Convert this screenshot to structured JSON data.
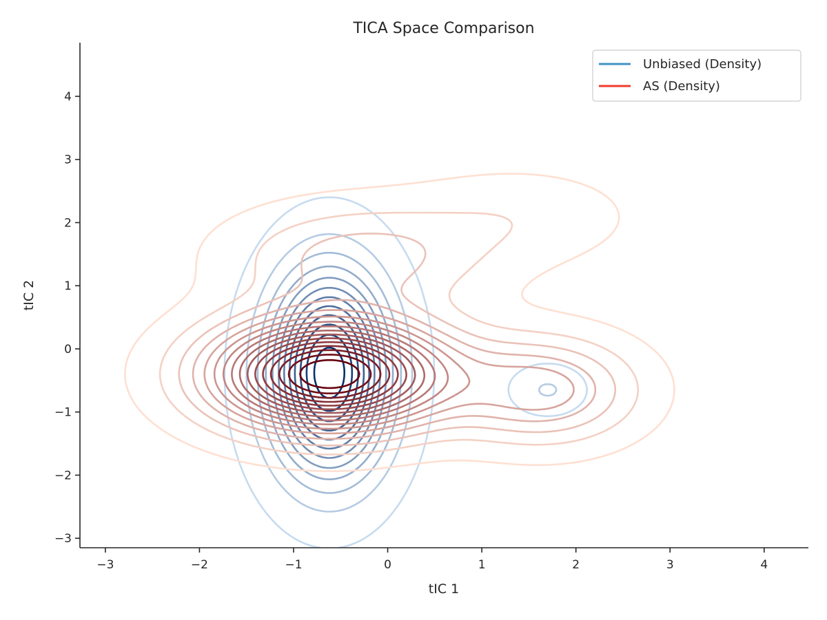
{
  "chart_data": {
    "type": "contour",
    "title": "TICA Space Comparison",
    "xlabel": "tIC 1",
    "ylabel": "tIC 2",
    "xlim": [
      -3.27,
      4.47
    ],
    "ylim": [
      -3.15,
      4.85
    ],
    "xticks": [
      -3,
      -2,
      -1,
      0,
      1,
      2,
      3,
      4
    ],
    "yticks": [
      -3,
      -2,
      -1,
      0,
      1,
      2,
      3,
      4
    ],
    "xtick_labels": [
      "−3",
      "−2",
      "−1",
      "0",
      "1",
      "2",
      "3",
      "4"
    ],
    "ytick_labels": [
      "−3",
      "−2",
      "−1",
      "0",
      "1",
      "2",
      "3",
      "4"
    ],
    "grid": false,
    "legend_position": "top-right",
    "legend": [
      {
        "label": "Unbiased (Density)",
        "color": "#4292c6"
      },
      {
        "label": "AS (Density)",
        "color": "#ef3b2c"
      }
    ],
    "series": [
      {
        "name": "Unbiased (Density)",
        "colormap": "Blues",
        "light_color": "#c6dbef",
        "dark_color": "#08306b",
        "levels": 12,
        "components": [
          {
            "cx": -0.62,
            "cy": -0.38,
            "sx": 0.42,
            "sy": 1.05,
            "weight": 1.0
          },
          {
            "cx": 1.7,
            "cy": -0.65,
            "sx": 0.25,
            "sy": 0.25,
            "weight": 0.12
          }
        ]
      },
      {
        "name": "AS (Density)",
        "colormap": "Reds",
        "light_color": "#fee0d2",
        "dark_color": "#67000d",
        "levels": 16,
        "components": [
          {
            "cx": -0.62,
            "cy": -0.4,
            "sx": 0.82,
            "sy": 0.58,
            "weight": 1.0
          },
          {
            "cx": 1.65,
            "cy": -0.65,
            "sx": 0.65,
            "sy": 0.55,
            "weight": 0.3
          },
          {
            "cx": -0.3,
            "cy": 1.45,
            "sx": 0.9,
            "sy": 0.55,
            "weight": 0.18
          },
          {
            "cx": 1.4,
            "cy": 2.1,
            "sx": 0.8,
            "sy": 0.5,
            "weight": 0.07
          }
        ]
      }
    ]
  }
}
